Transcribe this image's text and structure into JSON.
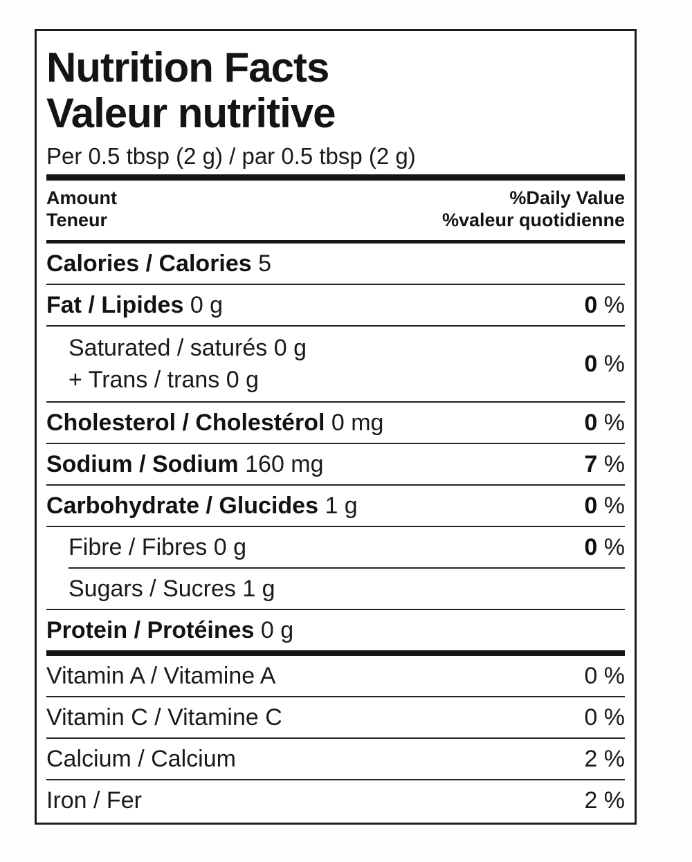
{
  "label": {
    "title_en": "Nutrition Facts",
    "title_fr": "Valeur nutritive",
    "serving": "Per 0.5 tbsp (2 g) / par 0.5 tbsp (2 g)",
    "header": {
      "amount_en": "Amount",
      "amount_fr": "Teneur",
      "dv_en": "%Daily Value",
      "dv_fr": "%valeur quotidienne"
    },
    "calories": {
      "label": "Calories / Calories",
      "value": "5"
    },
    "nutrients": [
      {
        "label": "Fat / Lipides",
        "amount": "0 g",
        "dv": "0",
        "unit": "%"
      },
      {
        "line1": "Saturated / saturés 0 g",
        "line2": "+ Trans / trans 0 g",
        "dv": "0",
        "unit": "%"
      },
      {
        "label": "Cholesterol / Cholestérol",
        "amount": "0 mg",
        "dv": "0",
        "unit": "%"
      },
      {
        "label": "Sodium / Sodium",
        "amount": "160 mg",
        "dv": "7",
        "unit": "%"
      },
      {
        "label": "Carbohydrate / Glucides",
        "amount": "1 g",
        "dv": "0",
        "unit": "%"
      },
      {
        "text": "Fibre / Fibres 0 g",
        "dv": "0",
        "unit": "%"
      },
      {
        "text": "Sugars / Sucres 1 g"
      },
      {
        "label": "Protein / Protéines",
        "amount": "0 g"
      }
    ],
    "micronutrients": [
      {
        "text": "Vitamin A / Vitamine A",
        "dv": "0 %"
      },
      {
        "text": "Vitamin C / Vitamine C",
        "dv": "0 %"
      },
      {
        "text": "Calcium / Calcium",
        "dv": "2 %"
      },
      {
        "text": "Iron / Fer",
        "dv": "2 %"
      }
    ],
    "colors": {
      "text": "#1a1a1a",
      "rule": "#222222",
      "background": "#ffffff"
    }
  }
}
